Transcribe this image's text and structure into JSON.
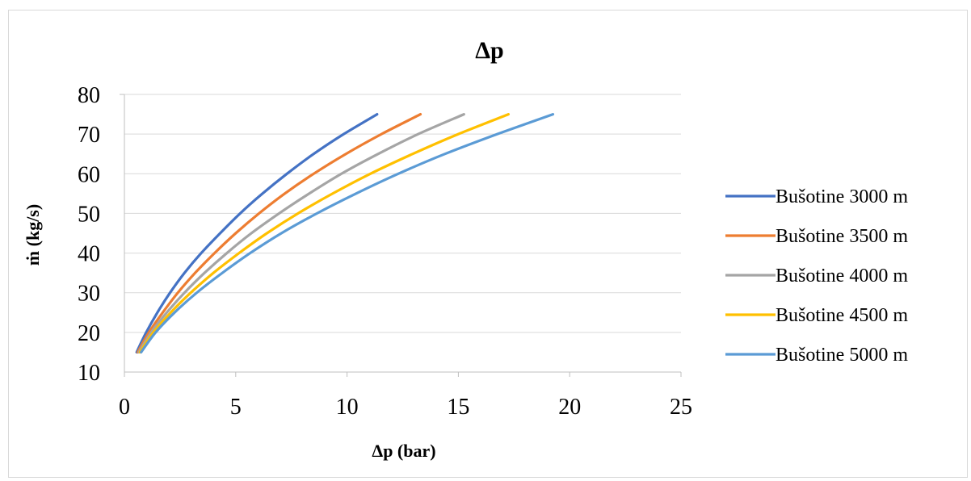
{
  "chart_data": {
    "type": "line",
    "title": "Δp",
    "xlabel": "Δp (bar)",
    "ylabel": "ṁ (kg/s)",
    "xlim": [
      0,
      25
    ],
    "ylim": [
      10,
      80
    ],
    "xticks": [
      0,
      5,
      10,
      15,
      20,
      25
    ],
    "yticks": [
      10,
      20,
      30,
      40,
      50,
      60,
      70,
      80
    ],
    "grid": "horizontal",
    "legend_position": "right",
    "series": [
      {
        "name": "Bušotine 3000 m",
        "color": "#4472C4",
        "points": [
          [
            0.55,
            15
          ],
          [
            0.98,
            20
          ],
          [
            1.48,
            25
          ],
          [
            2.05,
            30
          ],
          [
            2.7,
            35
          ],
          [
            3.45,
            40
          ],
          [
            4.3,
            45
          ],
          [
            5.2,
            50
          ],
          [
            6.2,
            55
          ],
          [
            7.3,
            60
          ],
          [
            8.5,
            65
          ],
          [
            9.85,
            70
          ],
          [
            11.35,
            75
          ]
        ]
      },
      {
        "name": "Bušotine 3500 m",
        "color": "#ED7D31",
        "points": [
          [
            0.6,
            15
          ],
          [
            1.1,
            20
          ],
          [
            1.72,
            25
          ],
          [
            2.4,
            30
          ],
          [
            3.18,
            35
          ],
          [
            4.05,
            40
          ],
          [
            5.0,
            45
          ],
          [
            6.05,
            50
          ],
          [
            7.2,
            55
          ],
          [
            8.5,
            60
          ],
          [
            9.95,
            65
          ],
          [
            11.55,
            70
          ],
          [
            13.3,
            75
          ]
        ]
      },
      {
        "name": "Bušotine 4000 m",
        "color": "#A5A5A5",
        "points": [
          [
            0.65,
            15
          ],
          [
            1.2,
            20
          ],
          [
            1.9,
            25
          ],
          [
            2.7,
            30
          ],
          [
            3.6,
            35
          ],
          [
            4.6,
            40
          ],
          [
            5.7,
            45
          ],
          [
            6.95,
            50
          ],
          [
            8.3,
            55
          ],
          [
            9.75,
            60
          ],
          [
            11.4,
            65
          ],
          [
            13.2,
            70
          ],
          [
            15.25,
            75
          ]
        ]
      },
      {
        "name": "Bušotine 4500 m",
        "color": "#FFC000",
        "points": [
          [
            0.7,
            15
          ],
          [
            1.3,
            20
          ],
          [
            2.08,
            25
          ],
          [
            2.98,
            30
          ],
          [
            4.0,
            35
          ],
          [
            5.15,
            40
          ],
          [
            6.4,
            45
          ],
          [
            7.8,
            50
          ],
          [
            9.35,
            55
          ],
          [
            11.05,
            60
          ],
          [
            12.95,
            65
          ],
          [
            15.0,
            70
          ],
          [
            17.25,
            75
          ]
        ]
      },
      {
        "name": "Bušotine 5000 m",
        "color": "#5B9BD5",
        "points": [
          [
            0.75,
            15
          ],
          [
            1.4,
            20
          ],
          [
            2.25,
            25
          ],
          [
            3.25,
            30
          ],
          [
            4.4,
            35
          ],
          [
            5.65,
            40
          ],
          [
            7.05,
            45
          ],
          [
            8.65,
            50
          ],
          [
            10.4,
            55
          ],
          [
            12.3,
            60
          ],
          [
            14.4,
            65
          ],
          [
            16.75,
            70
          ],
          [
            19.25,
            75
          ]
        ]
      }
    ]
  }
}
